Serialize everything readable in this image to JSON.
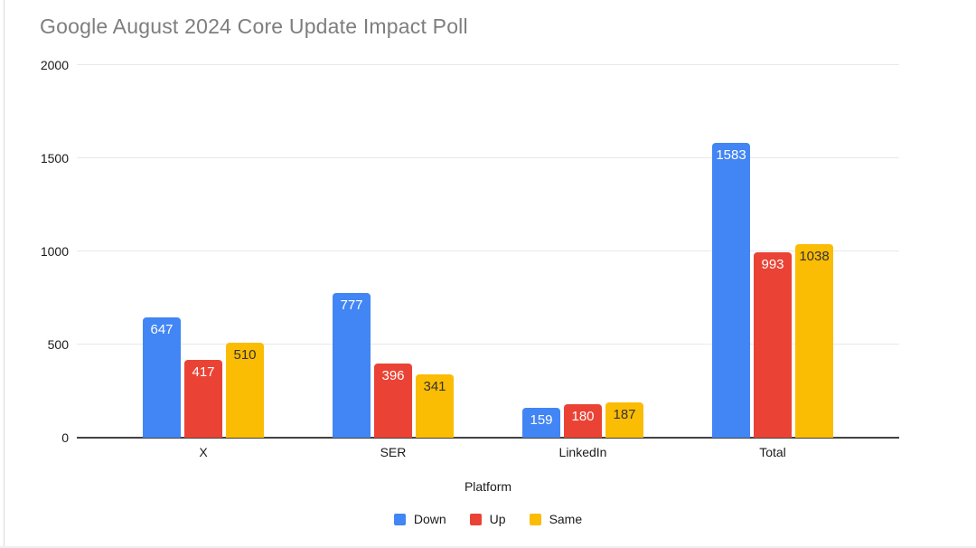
{
  "chart_data": {
    "type": "bar",
    "title": "Google August 2024 Core Update Impact Poll",
    "categories": [
      "X",
      "SER",
      "LinkedIn",
      "Total"
    ],
    "series": [
      {
        "name": "Down",
        "color": "#4285F4",
        "label_color": "#ffffff",
        "values": [
          647,
          777,
          159,
          1583
        ]
      },
      {
        "name": "Up",
        "color": "#EA4335",
        "label_color": "#ffffff",
        "values": [
          417,
          396,
          180,
          993
        ]
      },
      {
        "name": "Same",
        "color": "#FBBC04",
        "label_color": "#333333",
        "values": [
          510,
          341,
          187,
          1038
        ]
      }
    ],
    "xlabel": "Platform",
    "ylabel": "",
    "ylim": [
      0,
      2000
    ],
    "yticks": [
      0,
      500,
      1000,
      1500,
      2000
    ],
    "grid": true,
    "bar_labels": true,
    "legend_position": "bottom"
  },
  "colors": {
    "background": "#ffffff",
    "title_text": "#7e7e7e",
    "axis_text": "#1a1a1a",
    "gridline": "#e8e8e8",
    "axis_line": "#424242",
    "frame_border": "#d9d9d9"
  }
}
